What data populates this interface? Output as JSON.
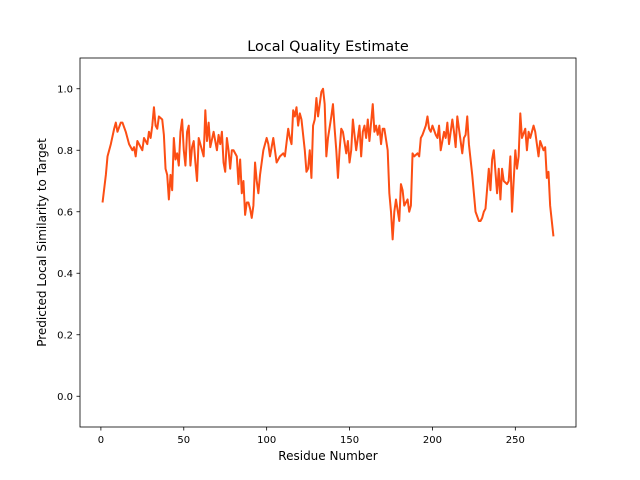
{
  "chart_data": {
    "type": "line",
    "title": "Local Quality Estimate",
    "xlabel": "Residue Number",
    "ylabel": "Predicted Local Similarity to Target",
    "xlim": [
      -12.6,
      286.6
    ],
    "ylim": [
      -0.1,
      1.1
    ],
    "xticks": [
      0,
      50,
      100,
      150,
      200,
      250
    ],
    "yticks": [
      {
        "value": 0,
        "label": "0.0"
      },
      0.2,
      0.4,
      0.6,
      0.8,
      {
        "value": 1,
        "label": "1.0"
      }
    ],
    "color": "#fc4e14",
    "x": [
      1,
      3,
      4,
      6,
      8,
      9,
      10,
      12,
      13,
      15,
      17,
      19,
      20,
      21,
      22,
      25,
      26,
      28,
      29,
      30,
      31,
      32,
      33,
      34,
      35,
      37,
      38,
      39,
      40,
      41,
      42,
      43,
      44,
      45,
      46,
      47,
      48,
      49,
      50,
      51,
      52,
      53,
      54,
      55,
      56,
      57,
      58,
      59,
      61,
      62,
      63,
      64,
      65,
      66,
      68,
      69,
      70,
      71,
      72,
      73,
      74,
      75,
      76,
      77,
      78,
      79,
      80,
      82,
      83,
      84,
      85,
      86,
      87,
      88,
      89,
      90,
      91,
      92,
      93,
      94,
      95,
      96,
      98,
      100,
      101,
      102,
      103,
      104,
      105,
      106,
      108,
      110,
      111,
      113,
      114,
      115,
      116,
      117,
      118,
      119,
      120,
      121,
      123,
      124,
      125,
      126,
      127,
      128,
      129,
      130,
      131,
      132,
      133,
      134,
      135,
      136,
      137,
      139,
      140,
      141,
      142,
      143,
      144,
      145,
      146,
      148,
      149,
      150,
      151,
      152,
      153,
      154,
      156,
      157,
      158,
      159,
      160,
      161,
      162,
      164,
      165,
      166,
      167,
      168,
      169,
      170,
      171,
      173,
      174,
      175,
      176,
      177,
      178,
      180,
      181,
      182,
      183,
      185,
      186,
      187,
      188,
      189,
      191,
      192,
      193,
      194,
      196,
      197,
      198,
      199,
      200,
      202,
      203,
      204,
      205,
      207,
      208,
      209,
      210,
      212,
      213,
      214,
      215,
      216,
      218,
      219,
      220,
      221,
      222,
      224,
      225,
      226,
      228,
      229,
      230,
      231,
      232,
      234,
      235,
      236,
      237,
      239,
      240,
      241,
      242,
      243,
      245,
      246,
      247,
      248,
      250,
      251,
      252,
      253,
      254,
      256,
      257,
      258,
      259,
      261,
      262,
      263,
      264,
      265,
      267,
      268,
      269,
      270,
      271,
      273
    ],
    "values": [
      0.63,
      0.72,
      0.78,
      0.82,
      0.87,
      0.89,
      0.86,
      0.89,
      0.89,
      0.86,
      0.82,
      0.8,
      0.81,
      0.78,
      0.83,
      0.8,
      0.84,
      0.82,
      0.86,
      0.84,
      0.88,
      0.94,
      0.88,
      0.87,
      0.91,
      0.9,
      0.85,
      0.74,
      0.72,
      0.64,
      0.72,
      0.67,
      0.84,
      0.77,
      0.79,
      0.75,
      0.86,
      0.9,
      0.8,
      0.75,
      0.86,
      0.88,
      0.75,
      0.81,
      0.83,
      0.76,
      0.7,
      0.84,
      0.8,
      0.78,
      0.93,
      0.83,
      0.89,
      0.81,
      0.86,
      0.83,
      0.8,
      0.85,
      0.82,
      0.86,
      0.76,
      0.73,
      0.84,
      0.8,
      0.74,
      0.8,
      0.8,
      0.78,
      0.69,
      0.77,
      0.66,
      0.7,
      0.59,
      0.63,
      0.63,
      0.61,
      0.58,
      0.62,
      0.76,
      0.7,
      0.66,
      0.72,
      0.8,
      0.84,
      0.82,
      0.78,
      0.81,
      0.84,
      0.8,
      0.76,
      0.78,
      0.79,
      0.78,
      0.87,
      0.84,
      0.82,
      0.93,
      0.91,
      0.94,
      0.88,
      0.92,
      0.9,
      0.8,
      0.73,
      0.74,
      0.8,
      0.71,
      0.88,
      0.9,
      0.97,
      0.91,
      0.95,
      0.99,
      1.0,
      0.95,
      0.78,
      0.84,
      0.91,
      0.95,
      0.87,
      0.8,
      0.71,
      0.8,
      0.87,
      0.86,
      0.79,
      0.83,
      0.76,
      0.8,
      0.9,
      0.85,
      0.8,
      0.88,
      0.78,
      0.86,
      0.88,
      0.84,
      0.9,
      0.83,
      0.95,
      0.86,
      0.88,
      0.85,
      0.88,
      0.82,
      0.87,
      0.87,
      0.8,
      0.66,
      0.6,
      0.51,
      0.6,
      0.64,
      0.57,
      0.69,
      0.67,
      0.62,
      0.64,
      0.6,
      0.62,
      0.79,
      0.78,
      0.79,
      0.78,
      0.84,
      0.85,
      0.88,
      0.91,
      0.87,
      0.86,
      0.88,
      0.85,
      0.84,
      0.88,
      0.8,
      0.86,
      0.84,
      0.89,
      0.82,
      0.9,
      0.86,
      0.81,
      0.91,
      0.87,
      0.79,
      0.84,
      0.85,
      0.91,
      0.82,
      0.72,
      0.66,
      0.6,
      0.57,
      0.57,
      0.58,
      0.6,
      0.61,
      0.74,
      0.67,
      0.77,
      0.8,
      0.66,
      0.74,
      0.64,
      0.74,
      0.7,
      0.69,
      0.7,
      0.78,
      0.6,
      0.8,
      0.74,
      0.78,
      0.92,
      0.84,
      0.87,
      0.8,
      0.86,
      0.84,
      0.88,
      0.86,
      0.82,
      0.78,
      0.83,
      0.8,
      0.81,
      0.71,
      0.73,
      0.62,
      0.52
    ]
  }
}
